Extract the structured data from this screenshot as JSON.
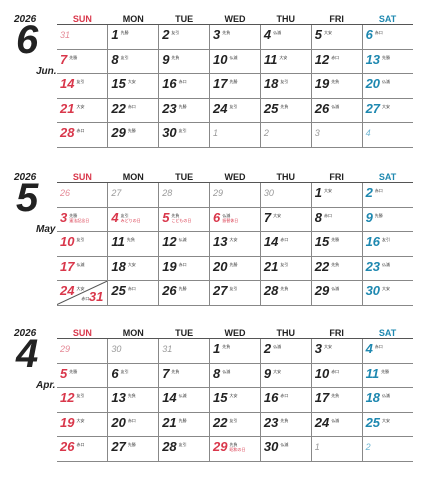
{
  "weekdays": [
    "SUN",
    "MON",
    "TUE",
    "WED",
    "THU",
    "FRI",
    "SAT"
  ],
  "colors": {
    "sunday": "#d9374b",
    "saturday": "#1e88b0",
    "holiday": "#d9374b",
    "out_of_month": "#999999"
  },
  "months": [
    {
      "year": "2026",
      "number": "6",
      "name": "Jun.",
      "weeks": [
        [
          {
            "d": "31",
            "out": true
          },
          {
            "d": "1",
            "r": "先勝"
          },
          {
            "d": "2",
            "r": "友引"
          },
          {
            "d": "3",
            "r": "先負"
          },
          {
            "d": "4",
            "r": "仏滅"
          },
          {
            "d": "5",
            "r": "大安"
          },
          {
            "d": "6",
            "r": "赤口"
          }
        ],
        [
          {
            "d": "7",
            "r": "先勝"
          },
          {
            "d": "8",
            "r": "友引"
          },
          {
            "d": "9",
            "r": "先負"
          },
          {
            "d": "10",
            "r": "仏滅"
          },
          {
            "d": "11",
            "r": "大安"
          },
          {
            "d": "12",
            "r": "赤口"
          },
          {
            "d": "13",
            "r": "先勝"
          }
        ],
        [
          {
            "d": "14",
            "r": "友引"
          },
          {
            "d": "15",
            "r": "大安"
          },
          {
            "d": "16",
            "r": "赤口"
          },
          {
            "d": "17",
            "r": "先勝"
          },
          {
            "d": "18",
            "r": "友引"
          },
          {
            "d": "19",
            "r": "先負"
          },
          {
            "d": "20",
            "r": "仏滅"
          }
        ],
        [
          {
            "d": "21",
            "r": "大安"
          },
          {
            "d": "22",
            "r": "赤口"
          },
          {
            "d": "23",
            "r": "先勝"
          },
          {
            "d": "24",
            "r": "友引"
          },
          {
            "d": "25",
            "r": "先負"
          },
          {
            "d": "26",
            "r": "仏滅"
          },
          {
            "d": "27",
            "r": "大安"
          }
        ],
        [
          {
            "d": "28",
            "r": "赤口"
          },
          {
            "d": "29",
            "r": "先勝"
          },
          {
            "d": "30",
            "r": "友引"
          },
          {
            "d": "1",
            "out": true
          },
          {
            "d": "2",
            "out": true
          },
          {
            "d": "3",
            "out": true
          },
          {
            "d": "4",
            "out": true
          }
        ]
      ]
    },
    {
      "year": "2026",
      "number": "5",
      "name": "May",
      "weeks": [
        [
          {
            "d": "26",
            "out": true
          },
          {
            "d": "27",
            "out": true
          },
          {
            "d": "28",
            "out": true
          },
          {
            "d": "29",
            "out": true,
            "hol": true
          },
          {
            "d": "30",
            "out": true
          },
          {
            "d": "1",
            "r": "大安"
          },
          {
            "d": "2",
            "r": "赤口"
          }
        ],
        [
          {
            "d": "3",
            "r": "先勝",
            "note": "憲法記念日",
            "hol": true
          },
          {
            "d": "4",
            "r": "友引",
            "note": "みどりの日",
            "hol": true
          },
          {
            "d": "5",
            "r": "先負",
            "note": "こどもの日",
            "hol": true
          },
          {
            "d": "6",
            "r": "仏滅",
            "note": "振替休日",
            "hol": true
          },
          {
            "d": "7",
            "r": "大安"
          },
          {
            "d": "8",
            "r": "赤口"
          },
          {
            "d": "9",
            "r": "先勝"
          }
        ],
        [
          {
            "d": "10",
            "r": "友引"
          },
          {
            "d": "11",
            "r": "先負"
          },
          {
            "d": "12",
            "r": "仏滅"
          },
          {
            "d": "13",
            "r": "大安"
          },
          {
            "d": "14",
            "r": "赤口"
          },
          {
            "d": "15",
            "r": "先勝"
          },
          {
            "d": "16",
            "r": "友引"
          }
        ],
        [
          {
            "d": "17",
            "r": "仏滅"
          },
          {
            "d": "18",
            "r": "大安"
          },
          {
            "d": "19",
            "r": "赤口"
          },
          {
            "d": "20",
            "r": "先勝"
          },
          {
            "d": "21",
            "r": "友引"
          },
          {
            "d": "22",
            "r": "先負"
          },
          {
            "d": "23",
            "r": "仏滅"
          }
        ],
        [
          {
            "d": "24",
            "r": "大安",
            "d2": "31",
            "r2": "赤口"
          },
          {
            "d": "25",
            "r": "赤口"
          },
          {
            "d": "26",
            "r": "先勝"
          },
          {
            "d": "27",
            "r": "友引"
          },
          {
            "d": "28",
            "r": "先負"
          },
          {
            "d": "29",
            "r": "仏滅"
          },
          {
            "d": "30",
            "r": "大安"
          }
        ]
      ]
    },
    {
      "year": "2026",
      "number": "4",
      "name": "Apr.",
      "weeks": [
        [
          {
            "d": "29",
            "out": true
          },
          {
            "d": "30",
            "out": true
          },
          {
            "d": "31",
            "out": true
          },
          {
            "d": "1",
            "r": "先負"
          },
          {
            "d": "2",
            "r": "仏滅"
          },
          {
            "d": "3",
            "r": "大安"
          },
          {
            "d": "4",
            "r": "赤口"
          }
        ],
        [
          {
            "d": "5",
            "r": "先勝"
          },
          {
            "d": "6",
            "r": "友引"
          },
          {
            "d": "7",
            "r": "先負"
          },
          {
            "d": "8",
            "r": "仏滅"
          },
          {
            "d": "9",
            "r": "大安"
          },
          {
            "d": "10",
            "r": "赤口"
          },
          {
            "d": "11",
            "r": "先勝"
          }
        ],
        [
          {
            "d": "12",
            "r": "友引"
          },
          {
            "d": "13",
            "r": "先負"
          },
          {
            "d": "14",
            "r": "仏滅"
          },
          {
            "d": "15",
            "r": "大安"
          },
          {
            "d": "16",
            "r": "赤口"
          },
          {
            "d": "17",
            "r": "先負"
          },
          {
            "d": "18",
            "r": "仏滅"
          }
        ],
        [
          {
            "d": "19",
            "r": "大安"
          },
          {
            "d": "20",
            "r": "赤口"
          },
          {
            "d": "21",
            "r": "先勝"
          },
          {
            "d": "22",
            "r": "友引"
          },
          {
            "d": "23",
            "r": "先負"
          },
          {
            "d": "24",
            "r": "仏滅"
          },
          {
            "d": "25",
            "r": "大安"
          }
        ],
        [
          {
            "d": "26",
            "r": "赤口"
          },
          {
            "d": "27",
            "r": "先勝"
          },
          {
            "d": "28",
            "r": "友引"
          },
          {
            "d": "29",
            "r": "先負",
            "note": "昭和の日",
            "hol": true
          },
          {
            "d": "30",
            "r": "仏滅"
          },
          {
            "d": "1",
            "out": true
          },
          {
            "d": "2",
            "out": true
          }
        ]
      ]
    }
  ]
}
